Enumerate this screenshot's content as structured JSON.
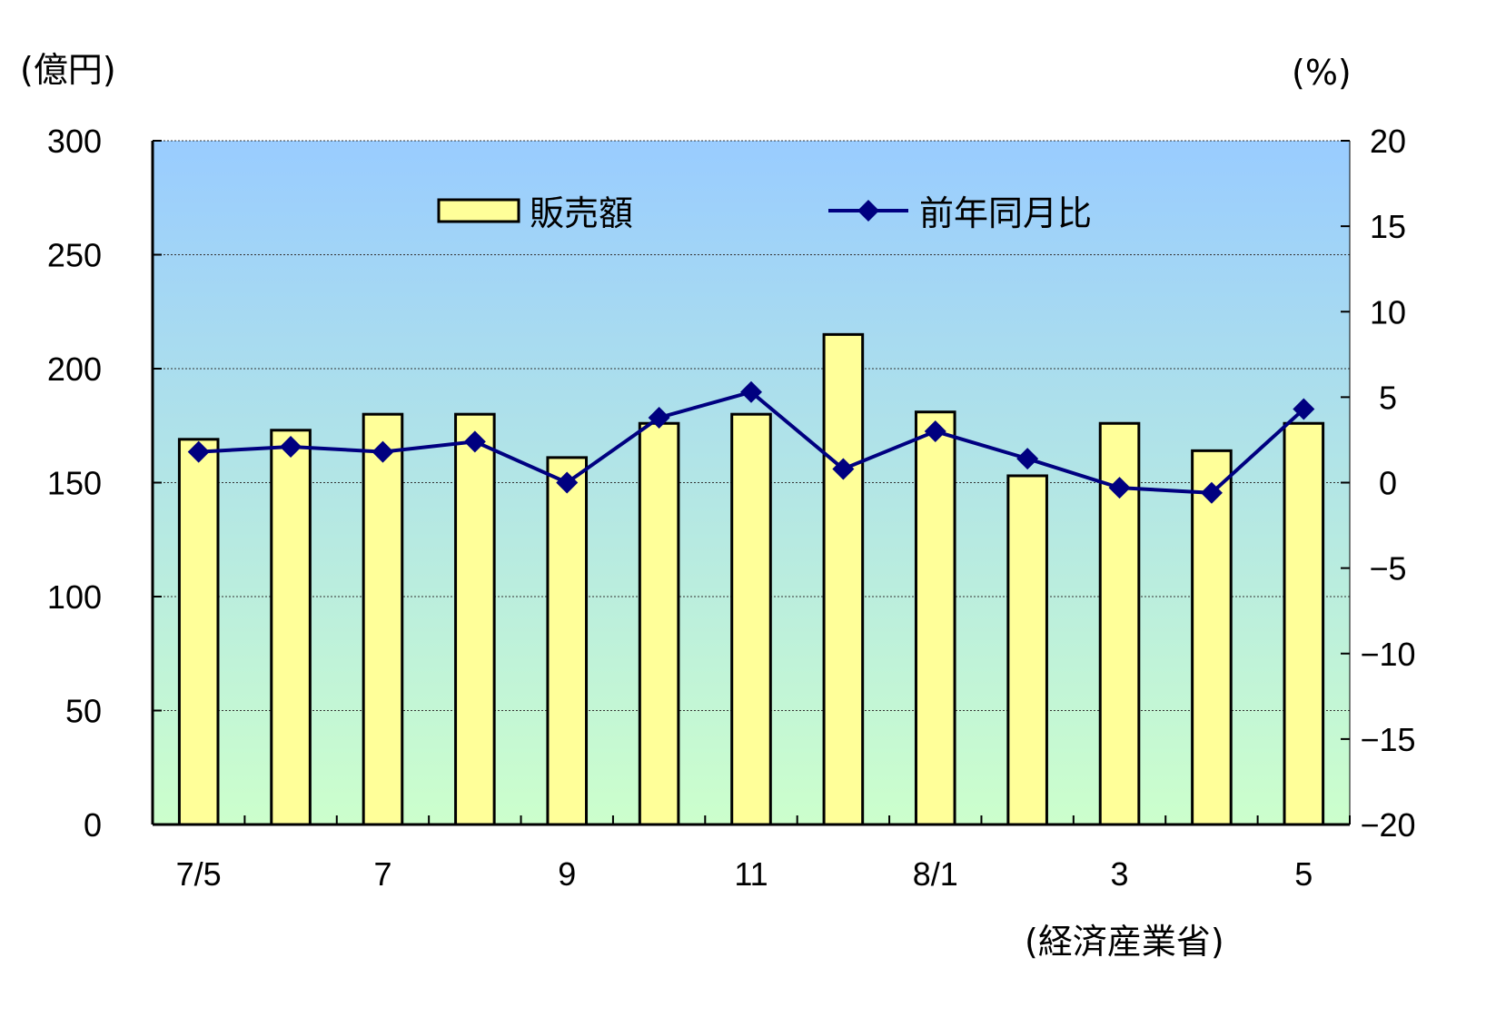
{
  "chart_data": {
    "type": "bar",
    "categories": [
      "7/5",
      "",
      "7",
      "",
      "9",
      "",
      "11",
      "",
      "8/1",
      "",
      "3",
      "",
      "5"
    ],
    "series": [
      {
        "name": "販売額",
        "type": "bar",
        "axis": "left",
        "values": [
          169,
          173,
          180,
          180,
          161,
          176,
          180,
          215,
          181,
          153,
          176,
          164,
          176
        ]
      },
      {
        "name": "前年同月比",
        "type": "line",
        "axis": "right",
        "values": [
          1.8,
          2.1,
          1.8,
          2.4,
          0.0,
          3.8,
          5.3,
          0.8,
          3.0,
          1.4,
          -0.3,
          -0.6,
          4.3
        ]
      }
    ],
    "left_axis": {
      "unit": "(億円)",
      "ylim": [
        0,
        300
      ],
      "ticks": [
        "0",
        "50",
        "100",
        "150",
        "200",
        "250",
        "300"
      ]
    },
    "right_axis": {
      "unit": "(%)",
      "ylim": [
        -20,
        20
      ],
      "ticks": [
        "20",
        "15",
        "10",
        "5",
        "0",
        "−5",
        "−10",
        "−15",
        "−20"
      ]
    },
    "grid": true,
    "legend": {
      "placement": "top"
    },
    "source": "(経済産業省)",
    "colors": {
      "bar_fill": "#ffff99",
      "bar_stroke": "#000000",
      "line": "#000080",
      "plot_top": "#99ccff",
      "plot_bottom": "#ccffcc"
    }
  }
}
